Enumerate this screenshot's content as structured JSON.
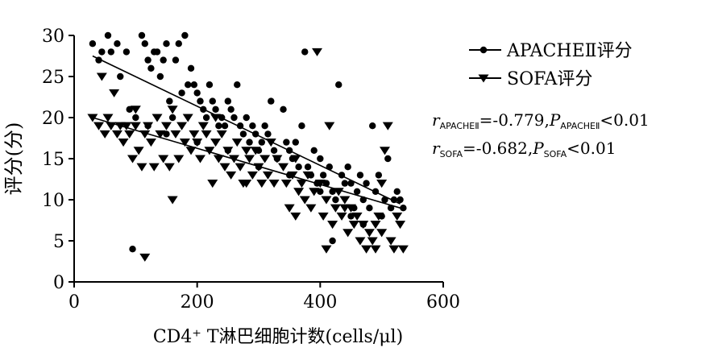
{
  "chart_data": {
    "type": "scatter",
    "xlabel": "CD4⁺ T淋巴细胞计数(cells/μl)",
    "ylabel": "评分(分)",
    "xlim": [
      0,
      600
    ],
    "ylim": [
      0,
      30
    ],
    "x_ticks": [
      "0",
      "200",
      "400",
      "600"
    ],
    "y_ticks": [
      "0",
      "5",
      "10",
      "15",
      "20",
      "25",
      "30"
    ],
    "grid": false,
    "legend_position": "top-right",
    "series": [
      {
        "name": "APACHEⅡ评分",
        "marker": "circle",
        "color": "#000000",
        "trend": [
          [
            30,
            27.5
          ],
          [
            530,
            9.5
          ]
        ],
        "points": [
          [
            30,
            29
          ],
          [
            40,
            27
          ],
          [
            45,
            28
          ],
          [
            55,
            30
          ],
          [
            60,
            28
          ],
          [
            70,
            29
          ],
          [
            75,
            25
          ],
          [
            85,
            28
          ],
          [
            90,
            21
          ],
          [
            95,
            4
          ],
          [
            100,
            20
          ],
          [
            110,
            30
          ],
          [
            115,
            29
          ],
          [
            120,
            27
          ],
          [
            125,
            26
          ],
          [
            130,
            28
          ],
          [
            135,
            28
          ],
          [
            140,
            25
          ],
          [
            145,
            27
          ],
          [
            150,
            29
          ],
          [
            155,
            22
          ],
          [
            160,
            20
          ],
          [
            165,
            27
          ],
          [
            170,
            29
          ],
          [
            175,
            23
          ],
          [
            180,
            30
          ],
          [
            185,
            24
          ],
          [
            190,
            26
          ],
          [
            195,
            24
          ],
          [
            200,
            23
          ],
          [
            205,
            22
          ],
          [
            210,
            21
          ],
          [
            215,
            20
          ],
          [
            220,
            24
          ],
          [
            225,
            22
          ],
          [
            230,
            21
          ],
          [
            235,
            19
          ],
          [
            240,
            20
          ],
          [
            245,
            19
          ],
          [
            250,
            22
          ],
          [
            255,
            21
          ],
          [
            260,
            20
          ],
          [
            265,
            24
          ],
          [
            270,
            19
          ],
          [
            275,
            18
          ],
          [
            280,
            20
          ],
          [
            285,
            17
          ],
          [
            290,
            19
          ],
          [
            295,
            18
          ],
          [
            300,
            16
          ],
          [
            305,
            17
          ],
          [
            310,
            19
          ],
          [
            315,
            18
          ],
          [
            320,
            22
          ],
          [
            325,
            16
          ],
          [
            330,
            15
          ],
          [
            340,
            21
          ],
          [
            345,
            17
          ],
          [
            350,
            16
          ],
          [
            355,
            15
          ],
          [
            360,
            17
          ],
          [
            365,
            14
          ],
          [
            370,
            19
          ],
          [
            375,
            28
          ],
          [
            380,
            14
          ],
          [
            385,
            13
          ],
          [
            390,
            16
          ],
          [
            395,
            12
          ],
          [
            400,
            15
          ],
          [
            405,
            13
          ],
          [
            410,
            12
          ],
          [
            415,
            14
          ],
          [
            420,
            11
          ],
          [
            425,
            10
          ],
          [
            430,
            24
          ],
          [
            435,
            13
          ],
          [
            440,
            12
          ],
          [
            445,
            14
          ],
          [
            450,
            12
          ],
          [
            455,
            9
          ],
          [
            460,
            11
          ],
          [
            465,
            13
          ],
          [
            470,
            10
          ],
          [
            475,
            12
          ],
          [
            480,
            9
          ],
          [
            485,
            19
          ],
          [
            490,
            11
          ],
          [
            495,
            13
          ],
          [
            500,
            8
          ],
          [
            505,
            10
          ],
          [
            510,
            15
          ],
          [
            515,
            9
          ],
          [
            520,
            10
          ],
          [
            525,
            11
          ],
          [
            530,
            10
          ],
          [
            535,
            9
          ],
          [
            120,
            19
          ],
          [
            150,
            18
          ],
          [
            200,
            17
          ],
          [
            250,
            16
          ],
          [
            300,
            14
          ],
          [
            350,
            13
          ],
          [
            400,
            11
          ],
          [
            450,
            8
          ],
          [
            420,
            5
          ],
          [
            470,
            7
          ]
        ]
      },
      {
        "name": "SOFA评分",
        "marker": "triangle-down",
        "color": "#000000",
        "trend": [
          [
            30,
            20
          ],
          [
            530,
            9
          ]
        ],
        "points": [
          [
            30,
            20
          ],
          [
            40,
            19
          ],
          [
            45,
            25
          ],
          [
            50,
            18
          ],
          [
            55,
            20
          ],
          [
            60,
            19
          ],
          [
            65,
            23
          ],
          [
            70,
            18
          ],
          [
            75,
            19
          ],
          [
            80,
            17
          ],
          [
            85,
            19
          ],
          [
            90,
            18
          ],
          [
            95,
            15
          ],
          [
            100,
            19
          ],
          [
            105,
            16
          ],
          [
            110,
            14
          ],
          [
            115,
            18
          ],
          [
            120,
            19
          ],
          [
            125,
            17
          ],
          [
            130,
            14
          ],
          [
            135,
            20
          ],
          [
            140,
            18
          ],
          [
            145,
            15
          ],
          [
            150,
            19
          ],
          [
            155,
            14
          ],
          [
            160,
            10
          ],
          [
            165,
            18
          ],
          [
            170,
            15
          ],
          [
            175,
            19
          ],
          [
            180,
            17
          ],
          [
            185,
            20
          ],
          [
            190,
            16
          ],
          [
            195,
            18
          ],
          [
            200,
            17
          ],
          [
            205,
            15
          ],
          [
            210,
            19
          ],
          [
            215,
            18
          ],
          [
            220,
            16
          ],
          [
            225,
            12
          ],
          [
            230,
            17
          ],
          [
            235,
            15
          ],
          [
            240,
            18
          ],
          [
            245,
            14
          ],
          [
            250,
            16
          ],
          [
            255,
            13
          ],
          [
            260,
            15
          ],
          [
            265,
            17
          ],
          [
            270,
            14
          ],
          [
            275,
            12
          ],
          [
            280,
            16
          ],
          [
            285,
            15
          ],
          [
            290,
            13
          ],
          [
            295,
            16
          ],
          [
            300,
            14
          ],
          [
            305,
            12
          ],
          [
            310,
            15
          ],
          [
            315,
            13
          ],
          [
            320,
            17
          ],
          [
            325,
            12
          ],
          [
            330,
            15
          ],
          [
            340,
            14
          ],
          [
            345,
            12
          ],
          [
            350,
            9
          ],
          [
            355,
            13
          ],
          [
            360,
            15
          ],
          [
            365,
            11
          ],
          [
            370,
            12
          ],
          [
            375,
            10
          ],
          [
            380,
            13
          ],
          [
            385,
            9
          ],
          [
            390,
            11
          ],
          [
            395,
            28
          ],
          [
            400,
            12
          ],
          [
            405,
            8
          ],
          [
            410,
            10
          ],
          [
            415,
            19
          ],
          [
            420,
            7
          ],
          [
            425,
            9
          ],
          [
            430,
            11
          ],
          [
            435,
            8
          ],
          [
            440,
            10
          ],
          [
            445,
            6
          ],
          [
            450,
            9
          ],
          [
            455,
            7
          ],
          [
            460,
            8
          ],
          [
            465,
            5
          ],
          [
            470,
            7
          ],
          [
            475,
            4
          ],
          [
            480,
            6
          ],
          [
            485,
            5
          ],
          [
            490,
            7
          ],
          [
            495,
            8
          ],
          [
            500,
            6
          ],
          [
            505,
            16
          ],
          [
            510,
            19
          ],
          [
            515,
            5
          ],
          [
            520,
            4
          ],
          [
            525,
            8
          ],
          [
            530,
            7
          ],
          [
            535,
            4
          ],
          [
            115,
            3
          ],
          [
            100,
            21
          ],
          [
            160,
            21
          ],
          [
            280,
            12
          ],
          [
            360,
            8
          ],
          [
            410,
            4
          ],
          [
            440,
            9
          ],
          [
            500,
            12
          ],
          [
            490,
            4
          ],
          [
            230,
            20
          ]
        ]
      }
    ]
  },
  "annotations": {
    "apache": {
      "var": "r",
      "r_sub": "APACHEⅡ",
      "r_value": "=-0.779,",
      "p_var": "P",
      "p_sub": "APACHEⅡ",
      "p_value": "<0.01"
    },
    "sofa": {
      "var": "r",
      "r_sub": "SOFA",
      "r_value": "=-0.682,",
      "p_var": "P",
      "p_sub": "SOFA",
      "p_value": "<0.01"
    }
  }
}
